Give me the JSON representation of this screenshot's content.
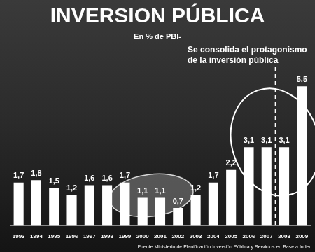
{
  "chart_data": {
    "type": "bar",
    "title": "INVERSION PÚBLICA",
    "subtitle": "En % de PBI-",
    "annotation": [
      "Se consolida el protagonismo",
      "de la inversión pública"
    ],
    "source": "Fuente Ministerio de Planificación Inversión Pública y Servicios en Base a Indec",
    "categories": [
      "1993",
      "1994",
      "1995",
      "1996",
      "1997",
      "1998",
      "1999",
      "2000",
      "2001",
      "2002",
      "2003",
      "2004",
      "2005",
      "2006",
      "2007",
      "2008",
      "2009"
    ],
    "values": [
      1.7,
      1.8,
      1.5,
      1.2,
      1.6,
      1.6,
      1.7,
      1.1,
      1.1,
      0.7,
      1.2,
      1.7,
      2.2,
      3.1,
      3.1,
      3.1,
      5.5
    ],
    "value_labels": [
      "1,7",
      "1,8",
      "1,5",
      "1,2",
      "1,6",
      "1,6",
      "1,7",
      "1,1",
      "1,1",
      "0,7",
      "1,2",
      "1,7",
      "2,2",
      "3,1",
      "3,1",
      "3,1",
      "5,5"
    ],
    "color": "#ffffff",
    "ylim": [
      0,
      6
    ],
    "grid": false,
    "data_labels": true,
    "tick_labels": "x"
  }
}
